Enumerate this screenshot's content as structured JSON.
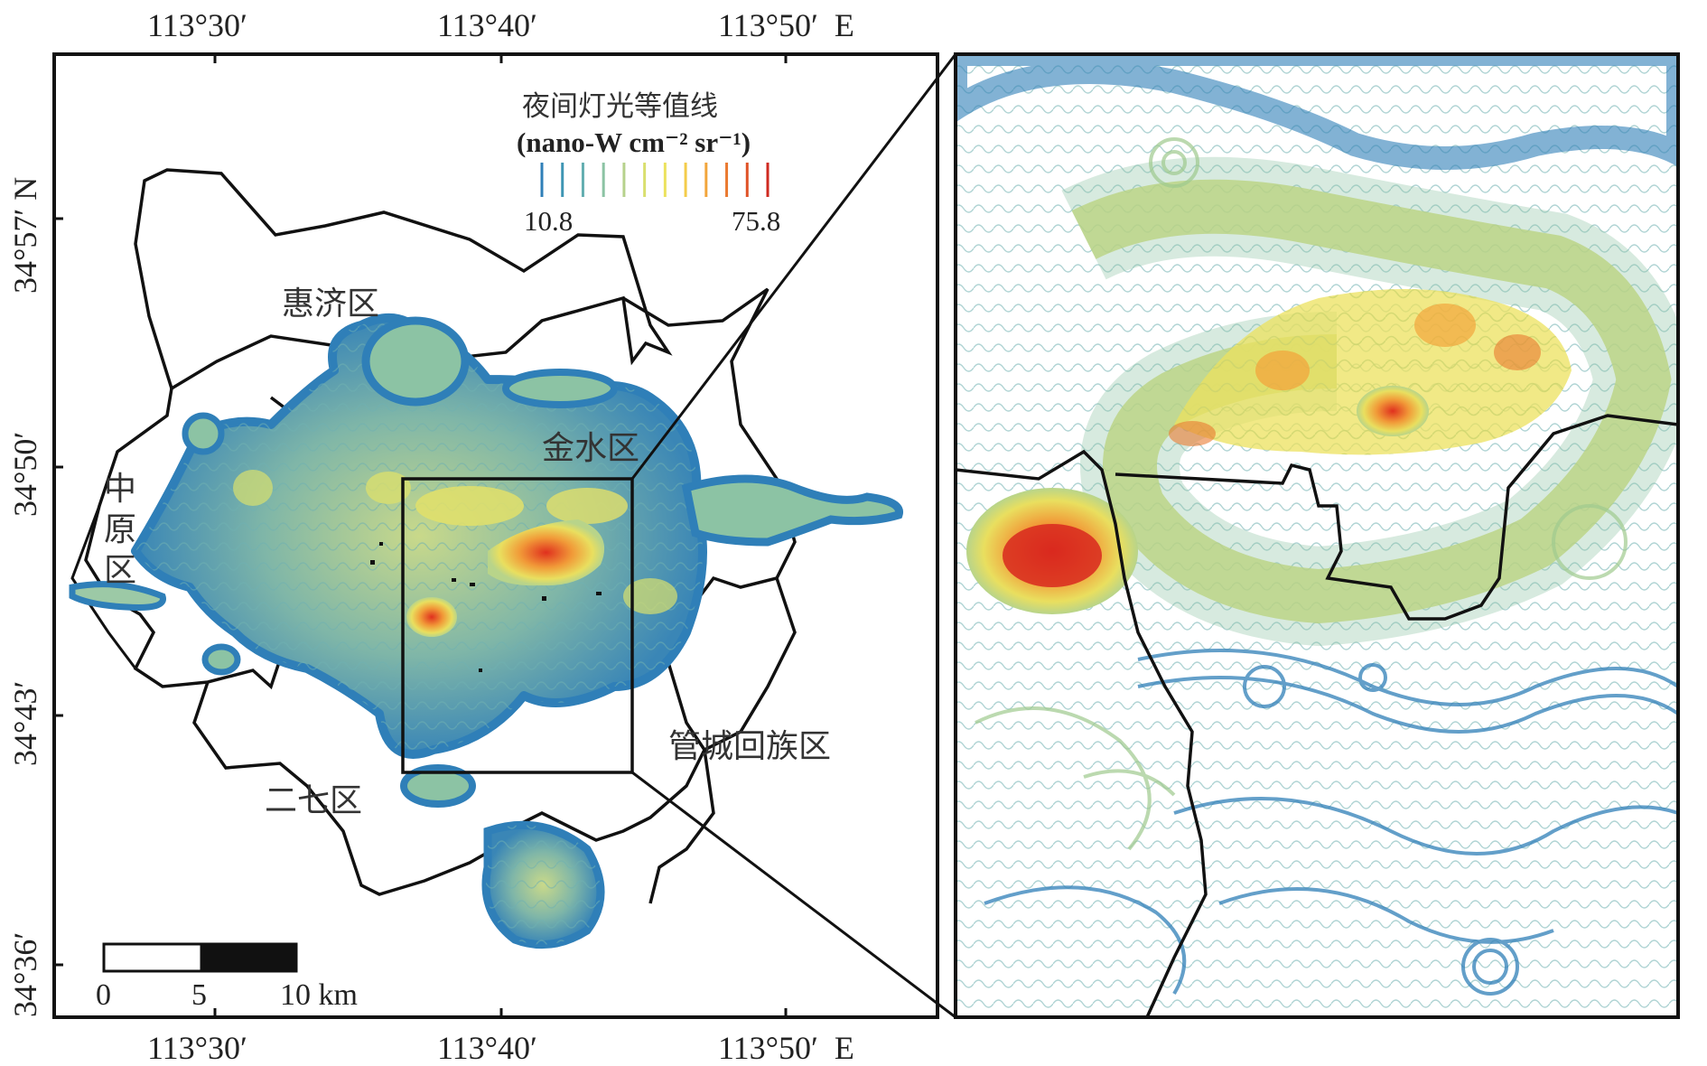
{
  "map": {
    "lon_ticks_top": [
      "113°30′",
      "113°40′",
      "113°50′  E"
    ],
    "lon_ticks_bottom": [
      "113°30′",
      "113°40′",
      "113°50′  E"
    ],
    "lat_ticks": [
      "34°57′ N",
      "34°50′",
      "34°43′",
      "34°36′"
    ],
    "districts": {
      "huiji": "惠济区",
      "jinshui": "金水区",
      "zhongyuan": "中原区",
      "erqi": "二七区",
      "guancheng": "管城回族区"
    },
    "legend": {
      "title": "夜间灯光等值线",
      "unit": "(nano-W cm⁻² sr⁻¹)",
      "min": "10.8",
      "max": "75.8",
      "colors": [
        "#2f7fb8",
        "#3f96b4",
        "#63aeb0",
        "#8cc3a4",
        "#b6d28c",
        "#d9df6e",
        "#ece25e",
        "#f4cc4a",
        "#f2a53c",
        "#ea7a30",
        "#e05226",
        "#cf2a20"
      ]
    },
    "scale_bar": {
      "labels": [
        "0",
        "5",
        "10 km"
      ]
    },
    "colors": {
      "low": "#2f7fb8",
      "mid": "#d9df6e",
      "high": "#d8281e",
      "boundary": "#111111"
    }
  }
}
